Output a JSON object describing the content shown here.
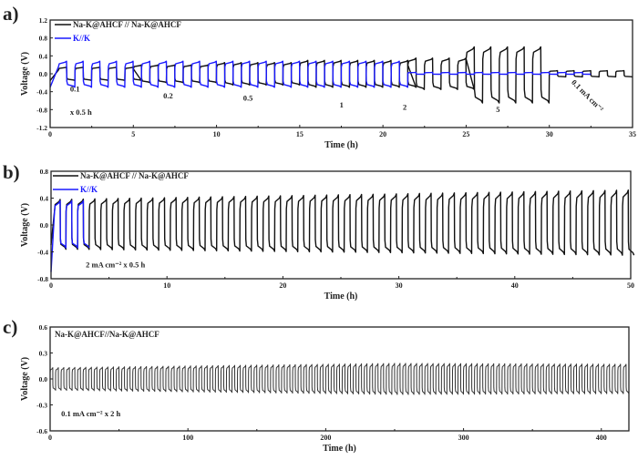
{
  "chart_data": [
    {
      "type": "line",
      "panel_label": "a)",
      "xlabel": "Time (h)",
      "ylabel": "Voltage (V)",
      "xlim": [
        0,
        35
      ],
      "ylim": [
        -1.2,
        1.2
      ],
      "xticks": [
        0,
        5,
        10,
        15,
        20,
        25,
        30,
        35
      ],
      "yticks": [
        -1.2,
        -0.8,
        -0.4,
        0.0,
        0.4,
        0.8,
        1.2
      ],
      "ytick_labels": [
        "-1.2",
        "-0.8",
        "-0.4",
        "0.0",
        "0.4",
        "0.8",
        "1.2"
      ],
      "legend": [
        "Na-K@AHCF // Na-K@AHCF",
        "K//K"
      ],
      "annotations": [
        "0.1",
        "0.2",
        "0.5",
        "1",
        "2",
        "5",
        "0.1 mA cm⁻²",
        "x 0.5 h"
      ],
      "series": [
        {
          "name": "Na-K@AHCF // Na-K@AHCF",
          "color": "#111111",
          "start_v": -0.15,
          "segments": [
            {
              "current": 0.1,
              "t_start": 0.5,
              "t_end": 5,
              "period": 1,
              "v_high": 0.15,
              "v_low": -0.15
            },
            {
              "current": 0.2,
              "t_start": 5,
              "t_end": 10,
              "period": 1,
              "v_high": 0.2,
              "v_low": -0.2
            },
            {
              "current": 0.5,
              "t_start": 10,
              "t_end": 15,
              "period": 1,
              "v_high": 0.25,
              "v_low": -0.25
            },
            {
              "current": 1,
              "t_start": 15,
              "t_end": 21.5,
              "period": 1,
              "v_high": 0.3,
              "v_low": -0.3
            },
            {
              "current": 2,
              "t_start": 21.5,
              "t_end": 25,
              "period": 1,
              "v_high": 0.35,
              "v_low": -0.35
            },
            {
              "current": 5,
              "t_start": 25,
              "t_end": 30,
              "period": 1,
              "v_high": 0.6,
              "v_low": -0.65
            },
            {
              "current": 0.1,
              "t_start": 30,
              "t_end": 35,
              "period": 1,
              "v_high": 0.07,
              "v_low": -0.07
            }
          ]
        },
        {
          "name": "K//K",
          "color": "#1a1aff",
          "start_v": -0.3,
          "segments": [
            {
              "t_start": 0.5,
              "t_end": 21.5,
              "period": 1,
              "v_high": 0.28,
              "v_low": -0.3
            },
            {
              "t_start": 21.5,
              "t_end": 32,
              "period": 1,
              "v_high": 0.03,
              "v_low": -0.01
            }
          ]
        }
      ]
    },
    {
      "type": "line",
      "panel_label": "b)",
      "xlabel": "Time (h)",
      "ylabel": "Voltage (V)",
      "xlim": [
        0,
        50
      ],
      "ylim": [
        -0.8,
        0.8
      ],
      "xticks": [
        0,
        10,
        20,
        30,
        40,
        50
      ],
      "yticks": [
        -0.8,
        -0.4,
        0.0,
        0.4,
        0.8
      ],
      "ytick_labels": [
        "-0.8",
        "-0.4",
        "0.0",
        "0.4",
        "0.8"
      ],
      "legend": [
        "Na-K@AHCF // Na-K@AHCF",
        "K//K"
      ],
      "annotations": [
        "2 mA cm⁻² x 0.5 h"
      ],
      "series": [
        {
          "name": "Na-K@AHCF // Na-K@AHCF",
          "color": "#111111",
          "start_v": -0.3,
          "segments": [
            {
              "t_start": 0.3,
              "t_end": 50,
              "period": 1,
              "v_high": 0.38,
              "v_low": -0.36,
              "v_high_end": 0.52,
              "v_low_end": -0.45
            }
          ]
        },
        {
          "name": "K//K",
          "color": "#1a1aff",
          "start_v": -0.7,
          "segments": [
            {
              "t_start": 0.3,
              "t_end": 3,
              "period": 1,
              "v_high": 0.36,
              "v_low": -0.34
            }
          ]
        }
      ]
    },
    {
      "type": "line",
      "panel_label": "c)",
      "xlabel": "Time (h)",
      "ylabel": "Voltage (V)",
      "xlim": [
        0,
        420
      ],
      "ylim": [
        -0.6,
        0.6
      ],
      "xticks": [
        0,
        100,
        200,
        300,
        400
      ],
      "yticks": [
        -0.6,
        -0.3,
        0.0,
        0.3,
        0.6
      ],
      "ytick_labels": [
        "-0.6",
        "-0.3",
        "0.0",
        "0.3",
        "0.6"
      ],
      "legend": [
        "Na-K@AHCF//Na-K@AHCF"
      ],
      "annotations": [
        "0.1 mA cm⁻² x 2 h"
      ],
      "series": [
        {
          "name": "Na-K@AHCF//Na-K@AHCF",
          "color": "#333333",
          "start_v": 0.0,
          "segments": [
            {
              "t_start": 0,
              "t_end": 420,
              "period": 4,
              "v_high": 0.13,
              "v_low": -0.13,
              "v_high_mid": 0.18,
              "v_low_mid": -0.18,
              "v_high_end": 0.17,
              "v_low_end": -0.17
            }
          ]
        }
      ]
    }
  ]
}
